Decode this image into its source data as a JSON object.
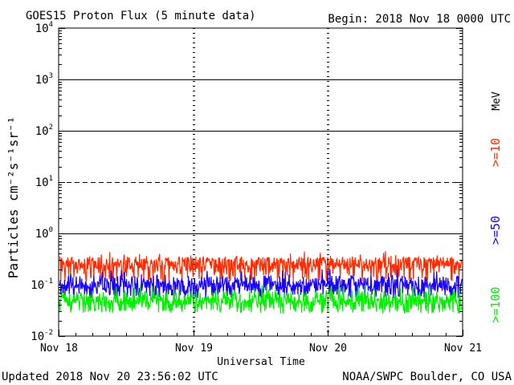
{
  "chart_data": {
    "type": "line",
    "title": "GOES15 Proton Flux (5 minute data)",
    "begin_label": "Begin: 2018 Nov 18 0000 UTC",
    "ylabel": "Particles cm⁻²s⁻¹sr⁻¹",
    "xlabel": "Universal Time",
    "updated": "Updated 2018 Nov 20 23:56:02 UTC",
    "credit": "NOAA/SWPC Boulder, CO USA",
    "y_scale": "log",
    "ylim": [
      0.01,
      10000
    ],
    "y_ticks": [
      {
        "value": 10000,
        "base": "10",
        "exp": "4"
      },
      {
        "value": 1000,
        "base": "10",
        "exp": "3"
      },
      {
        "value": 100,
        "base": "10",
        "exp": "2"
      },
      {
        "value": 10,
        "base": "10",
        "exp": "1"
      },
      {
        "value": 1,
        "base": "10",
        "exp": "0"
      },
      {
        "value": 0.1,
        "base": "10",
        "exp": "-1"
      },
      {
        "value": 0.01,
        "base": "10",
        "exp": "-2"
      }
    ],
    "x_range": [
      "2018-11-18",
      "2018-11-21"
    ],
    "x_ticks": [
      "Nov 18",
      "Nov 19",
      "Nov 20",
      "Nov 21"
    ],
    "reference_lines": [
      {
        "value": 1000,
        "style": "solid"
      },
      {
        "value": 100,
        "style": "solid"
      },
      {
        "value": 10,
        "style": "dashed"
      },
      {
        "value": 1,
        "style": "solid"
      }
    ],
    "grid": false,
    "legend_position": "right, vertical",
    "legend_unit": "MeV",
    "series": [
      {
        "name": ">=10",
        "color": "#ff2a00",
        "typical": 0.2,
        "range": [
          0.1,
          0.45
        ]
      },
      {
        "name": ">=50",
        "color": "#1a00ff",
        "typical": 0.08,
        "range": [
          0.05,
          0.2
        ]
      },
      {
        "name": ">=100",
        "color": "#00f000",
        "typical": 0.04,
        "range": [
          0.025,
          0.1
        ]
      }
    ]
  }
}
